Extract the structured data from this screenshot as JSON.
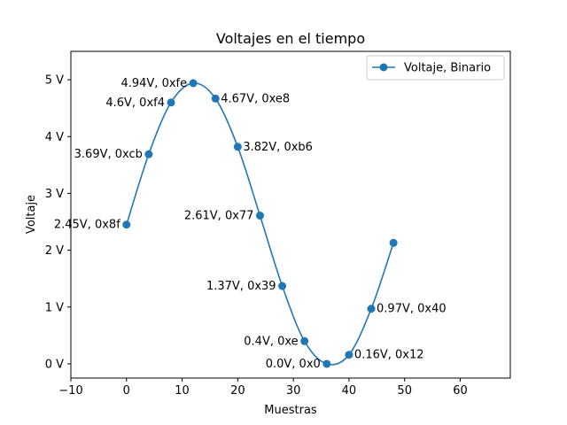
{
  "colors": {
    "series": "#1f77b4",
    "axes": "#000000",
    "background": "#ffffff",
    "legend_border": "#cccccc"
  },
  "chart_data": {
    "type": "line",
    "title": "Voltajes en el tiempo",
    "xlabel": "Muestras",
    "ylabel": "Voltaje",
    "xlim": [
      -10,
      69
    ],
    "ylim": [
      -0.25,
      5.5
    ],
    "xticks": [
      -10,
      0,
      10,
      20,
      30,
      40,
      50,
      60
    ],
    "xtick_labels": [
      "−10",
      "0",
      "10",
      "20",
      "30",
      "40",
      "50",
      "60"
    ],
    "yticks": [
      0,
      1,
      2,
      3,
      4,
      5
    ],
    "ytick_labels": [
      "0 V",
      "1 V",
      "2 V",
      "3 V",
      "4 V",
      "5 V"
    ],
    "grid": false,
    "legend": {
      "position": "top-right",
      "entries": [
        "Voltaje, Binario"
      ]
    },
    "series": [
      {
        "name": "Voltaje, Binario",
        "marker": "circle",
        "x": [
          0,
          4,
          8,
          12,
          16,
          20,
          24,
          28,
          32,
          36,
          40,
          44,
          48
        ],
        "y": [
          2.45,
          3.69,
          4.6,
          4.94,
          4.67,
          3.82,
          2.61,
          1.37,
          0.4,
          0.0,
          0.16,
          0.97,
          2.13
        ]
      }
    ],
    "annotations": [
      {
        "text": "2.45V, 0x8f",
        "x": 0,
        "y": 2.45,
        "side": "left"
      },
      {
        "text": "3.69V, 0xcb",
        "x": 4,
        "y": 3.69,
        "side": "left"
      },
      {
        "text": "4.6V, 0xf4",
        "x": 8,
        "y": 4.6,
        "side": "left"
      },
      {
        "text": "4.94V, 0xfe",
        "x": 12,
        "y": 4.94,
        "side": "left"
      },
      {
        "text": "4.67V, 0xe8",
        "x": 16,
        "y": 4.67,
        "side": "right"
      },
      {
        "text": "3.82V, 0xb6",
        "x": 20,
        "y": 3.82,
        "side": "right"
      },
      {
        "text": "2.61V, 0x77",
        "x": 24,
        "y": 2.61,
        "side": "left"
      },
      {
        "text": "1.37V, 0x39",
        "x": 28,
        "y": 1.37,
        "side": "left"
      },
      {
        "text": "0.4V, 0xe",
        "x": 32,
        "y": 0.4,
        "side": "left"
      },
      {
        "text": "0.0V, 0x0",
        "x": 36,
        "y": 0.0,
        "side": "left"
      },
      {
        "text": "0.16V, 0x12",
        "x": 40,
        "y": 0.16,
        "side": "right"
      },
      {
        "text": "0.97V, 0x40",
        "x": 44,
        "y": 0.97,
        "side": "right"
      }
    ]
  }
}
